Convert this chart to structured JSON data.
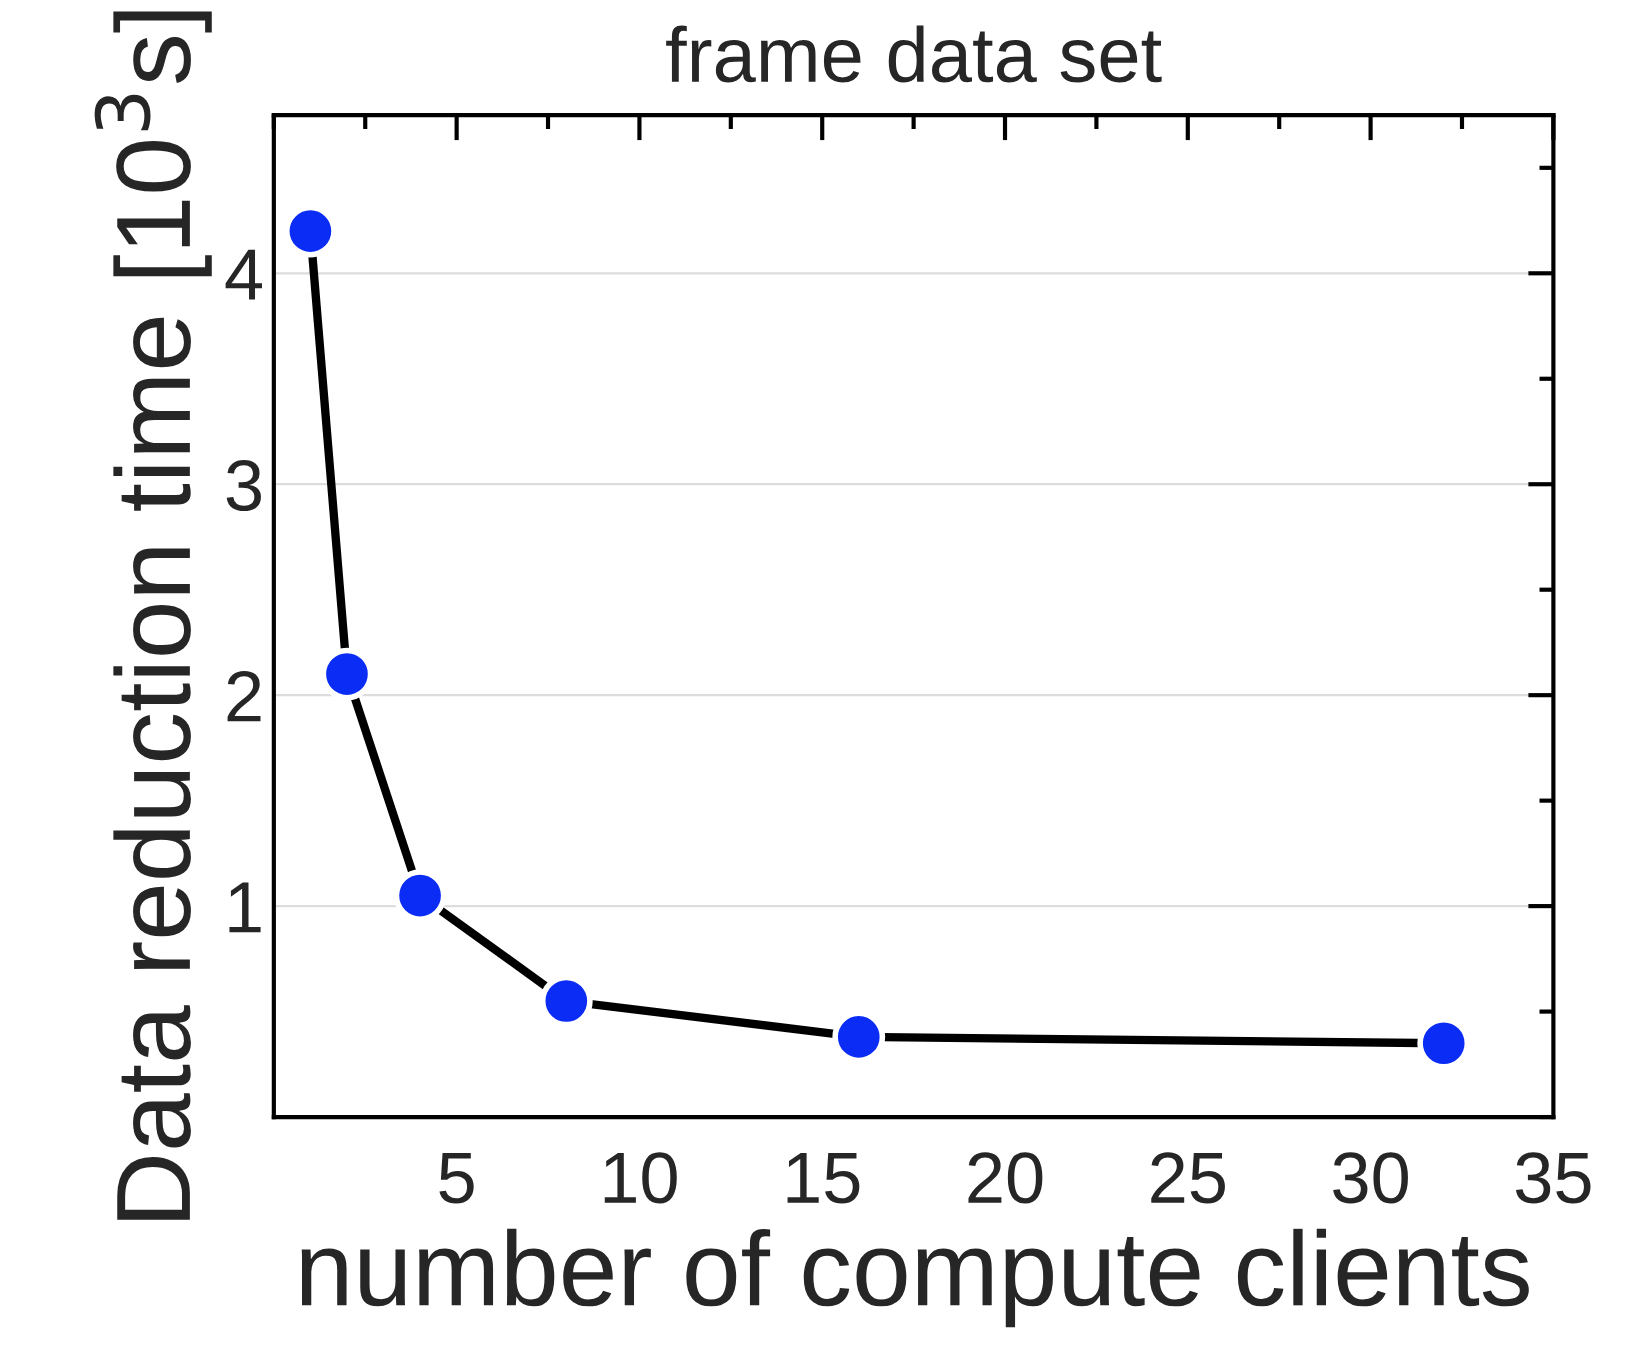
{
  "chart_data": {
    "type": "line",
    "title": "frame data set",
    "xlabel": "number of compute clients",
    "ylabel": "Data reduction time [10$^{3}$s]",
    "x": [
      1,
      2,
      4,
      8,
      16,
      32
    ],
    "series": [
      {
        "color": "#0a2cf5",
        "values": [
          4.2,
          2.1,
          1.05,
          0.55,
          0.38,
          0.35
        ]
      }
    ],
    "xlim": [
      0,
      35
    ],
    "xticks": [
      5,
      10,
      15,
      20,
      25,
      30,
      35
    ],
    "ylim": [
      0,
      4.75
    ],
    "yticks": [
      1,
      2,
      3,
      4
    ],
    "grid": "y",
    "marker": "circle",
    "line_style": "solid"
  }
}
